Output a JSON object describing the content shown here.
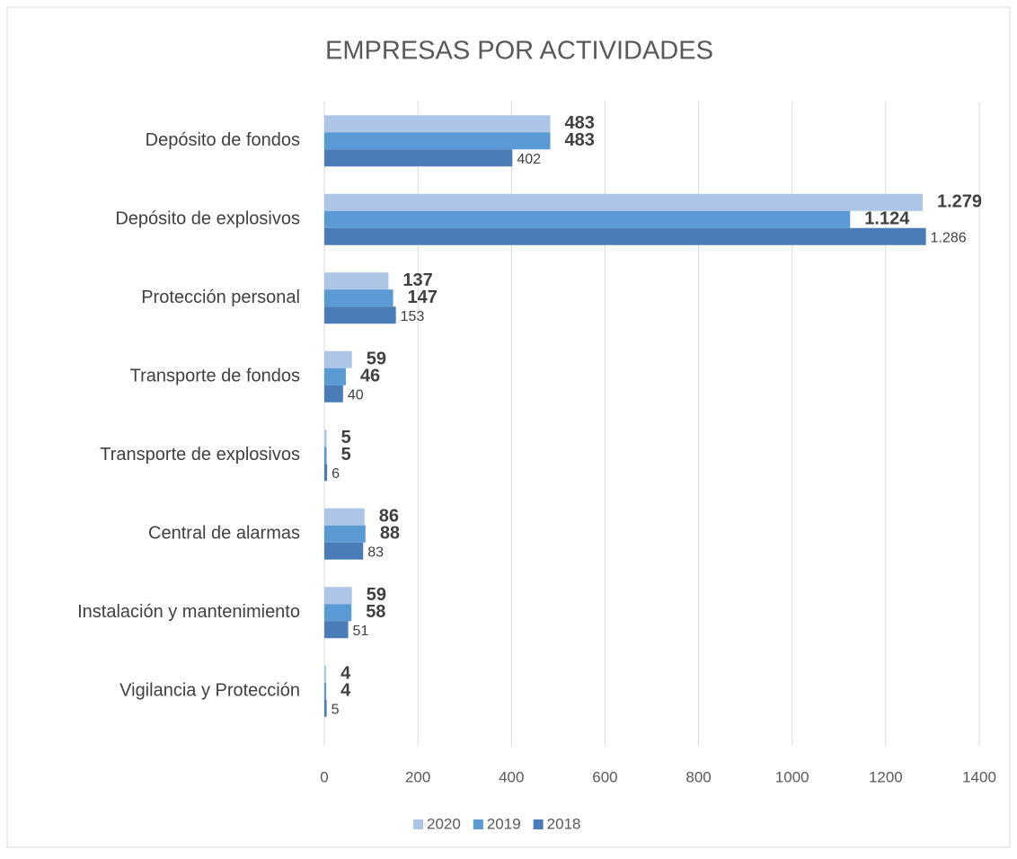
{
  "chart_data": {
    "type": "bar",
    "orientation": "horizontal",
    "title": "EMPRESAS POR ACTIVIDADES",
    "categories": [
      "Depósito de fondos",
      "Depósito de explosivos",
      "Protección personal",
      "Transporte de fondos",
      "Transporte de explosivos",
      "Central de alarmas",
      "Instalación y mantenimiento",
      "Vigilancia y Protección"
    ],
    "series": [
      {
        "name": "2020",
        "color": "#adc6e8",
        "values": [
          483,
          1279,
          137,
          59,
          5,
          86,
          59,
          4
        ],
        "value_labels": [
          "483",
          "1.279",
          "137",
          "59",
          "5",
          "86",
          "59",
          "4"
        ]
      },
      {
        "name": "2019",
        "color": "#5b9bd5",
        "values": [
          483,
          1124,
          147,
          46,
          5,
          88,
          58,
          4
        ],
        "value_labels": [
          "483",
          "1.124",
          "147",
          "46",
          "5",
          "88",
          "58",
          "4"
        ]
      },
      {
        "name": "2018",
        "color": "#4a7db7",
        "values": [
          402,
          1286,
          153,
          40,
          6,
          83,
          51,
          5
        ],
        "value_labels": [
          "402",
          "1.286",
          "153",
          "40",
          "6",
          "83",
          "51",
          "5"
        ]
      }
    ],
    "xlim": [
      0,
      1400
    ],
    "xticks": [
      0,
      200,
      400,
      600,
      800,
      1000,
      1200,
      1400
    ],
    "grid": true,
    "legend": "bottom"
  }
}
